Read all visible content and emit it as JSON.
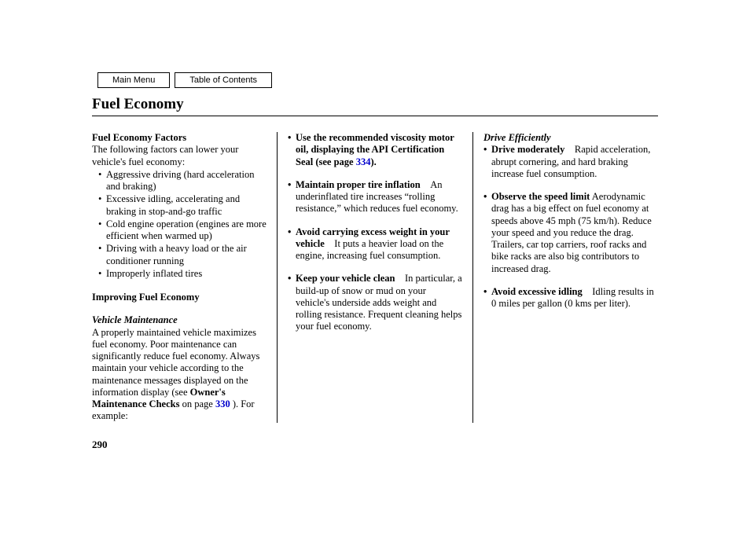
{
  "nav": {
    "main_menu": "Main Menu",
    "toc": "Table of Contents"
  },
  "title": "Fuel Economy",
  "page_number": "290",
  "col1": {
    "factors_heading": "Fuel Economy Factors",
    "factors_intro": "The following factors can lower your vehicle's fuel economy:",
    "factors": [
      "Aggressive driving (hard acceleration and braking)",
      "Excessive idling, accelerating and braking in stop-and-go traffic",
      "Cold engine operation (engines are more efficient when warmed up)",
      "Driving with a heavy load or the air conditioner running",
      "Improperly inflated tires"
    ],
    "improving_heading": "Improving Fuel Economy",
    "maintenance_heading": "Vehicle Maintenance",
    "maintenance_body_1": "A properly maintained vehicle maximizes fuel economy. Poor maintenance can significantly reduce fuel economy. Always maintain your vehicle according to the maintenance messages displayed on the information display (see ",
    "maintenance_bold": "Owner's Maintenance Checks",
    "maintenance_body_2": " on page ",
    "maintenance_link": "330",
    "maintenance_body_3": " ). For example:"
  },
  "col2": {
    "items": [
      {
        "lead": "Use the recommended viscosity motor oil, displaying the API Certification Seal (see page ",
        "link": "334",
        "lead_after": ").",
        "rest": ""
      },
      {
        "lead": "Maintain proper tire inflation",
        "rest": " An underinflated tire increases “rolling resistance,” which reduces fuel economy."
      },
      {
        "lead": "Avoid carrying excess weight in your vehicle",
        "rest": " It puts a heavier load on the engine, increasing fuel consumption."
      },
      {
        "lead": "Keep your vehicle clean",
        "rest": " In particular, a build-up of snow or mud on your vehicle's underside adds weight and rolling resistance. Frequent cleaning helps your fuel economy."
      }
    ]
  },
  "col3": {
    "heading": "Drive Efficiently",
    "items": [
      {
        "lead": "Drive moderately",
        "rest": " Rapid acceleration, abrupt cornering, and hard braking increase fuel consumption."
      },
      {
        "lead": "Observe the speed limit",
        "rest": " Aerodynamic drag has a big effect on fuel economy at speeds above 45 mph (75 km/h). Reduce your speed and you reduce the drag. Trailers, car top carriers, roof racks and bike racks are also big contributors to increased drag."
      },
      {
        "lead": "Avoid excessive idling",
        "rest": " Idling results in 0 miles per gallon (0 kms per liter)."
      }
    ]
  }
}
